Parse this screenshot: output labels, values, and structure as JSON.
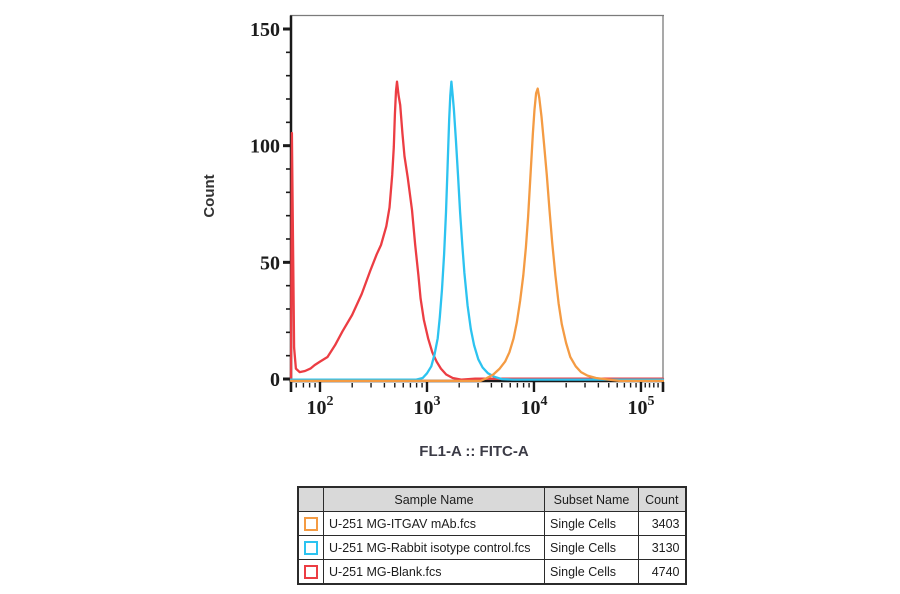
{
  "chart_data": {
    "type": "line",
    "subtype": "flow-cytometry-histogram",
    "title": "",
    "xlabel": "FL1-A :: FITC-A",
    "ylabel": "Count",
    "x_scale": "log10",
    "x_log_range": [
      1.729,
      5.206
    ],
    "x_major_ticks": [
      {
        "log": 2,
        "base": "10",
        "exp": "2"
      },
      {
        "log": 3,
        "base": "10",
        "exp": "3"
      },
      {
        "log": 4,
        "base": "10",
        "exp": "4"
      },
      {
        "log": 5,
        "base": "10",
        "exp": "5"
      }
    ],
    "x_extra_minor_tick_logs": [
      5.04,
      5.08,
      5.12,
      5.16
    ],
    "ylim": [
      0,
      150
    ],
    "y_major_ticks": [
      0,
      50,
      100,
      150
    ],
    "y_minor_step": 10,
    "grid": false,
    "legend_position": "table-below",
    "axis_color": "#1a1a1a",
    "frame_color": "#7b7b7b",
    "series": [
      {
        "name": "U-251 MG-Blank.fcs",
        "color": "#ec3d43",
        "peak": {
          "x_log10": 2.72,
          "count": 128
        },
        "points_log10x_count": [
          [
            1.729,
            0
          ],
          [
            1.737,
            106
          ],
          [
            1.748,
            60
          ],
          [
            1.758,
            14
          ],
          [
            1.775,
            5
          ],
          [
            1.81,
            3.5
          ],
          [
            1.86,
            4
          ],
          [
            1.91,
            5
          ],
          [
            1.95,
            6.5
          ],
          [
            2.0,
            8
          ],
          [
            2.07,
            10
          ],
          [
            2.14,
            15
          ],
          [
            2.21,
            21
          ],
          [
            2.3,
            28
          ],
          [
            2.39,
            37
          ],
          [
            2.47,
            47
          ],
          [
            2.53,
            54
          ],
          [
            2.57,
            58
          ],
          [
            2.62,
            66
          ],
          [
            2.65,
            74
          ],
          [
            2.675,
            88
          ],
          [
            2.69,
            100
          ],
          [
            2.7,
            114
          ],
          [
            2.71,
            124
          ],
          [
            2.72,
            128
          ],
          [
            2.735,
            122
          ],
          [
            2.75,
            118
          ],
          [
            2.77,
            106
          ],
          [
            2.79,
            96
          ],
          [
            2.82,
            87
          ],
          [
            2.86,
            73
          ],
          [
            2.89,
            58
          ],
          [
            2.92,
            45
          ],
          [
            2.94,
            35
          ],
          [
            2.97,
            26
          ],
          [
            3.01,
            18
          ],
          [
            3.05,
            12
          ],
          [
            3.09,
            8
          ],
          [
            3.13,
            5
          ],
          [
            3.18,
            2.5
          ],
          [
            3.24,
            1
          ],
          [
            3.32,
            0.3
          ],
          [
            3.45,
            0
          ],
          [
            5.206,
            0
          ]
        ]
      },
      {
        "name": "U-251 MG-Rabbit isotype control.fcs",
        "color": "#2cc3f0",
        "peak": {
          "x_log10": 3.228,
          "count": 128
        },
        "points_log10x_count": [
          [
            1.729,
            0
          ],
          [
            2.9,
            0
          ],
          [
            2.96,
            1
          ],
          [
            3.0,
            3
          ],
          [
            3.04,
            6
          ],
          [
            3.07,
            11
          ],
          [
            3.1,
            18
          ],
          [
            3.12,
            27
          ],
          [
            3.14,
            39
          ],
          [
            3.16,
            54
          ],
          [
            3.178,
            72
          ],
          [
            3.19,
            88
          ],
          [
            3.2,
            102
          ],
          [
            3.208,
            112
          ],
          [
            3.218,
            122
          ],
          [
            3.228,
            128
          ],
          [
            3.24,
            122
          ],
          [
            3.252,
            116
          ],
          [
            3.27,
            103
          ],
          [
            3.29,
            88
          ],
          [
            3.31,
            72
          ],
          [
            3.33,
            58
          ],
          [
            3.35,
            46
          ],
          [
            3.38,
            32
          ],
          [
            3.41,
            22
          ],
          [
            3.44,
            15
          ],
          [
            3.48,
            9
          ],
          [
            3.52,
            5.5
          ],
          [
            3.57,
            3
          ],
          [
            3.63,
            1.5
          ],
          [
            3.7,
            0.5
          ],
          [
            3.8,
            0
          ],
          [
            5.206,
            0
          ]
        ]
      },
      {
        "name": "U-251 MG-ITGAV mAb.fcs",
        "color": "#f49b43",
        "peak": {
          "x_log10": 4.035,
          "count": 125
        },
        "points_log10x_count": [
          [
            1.729,
            0
          ],
          [
            3.5,
            0
          ],
          [
            3.56,
            1
          ],
          [
            3.62,
            2.5
          ],
          [
            3.68,
            5
          ],
          [
            3.73,
            8
          ],
          [
            3.77,
            12
          ],
          [
            3.81,
            18
          ],
          [
            3.84,
            25
          ],
          [
            3.87,
            34
          ],
          [
            3.9,
            45
          ],
          [
            3.925,
            57
          ],
          [
            3.945,
            70
          ],
          [
            3.96,
            82
          ],
          [
            3.975,
            94
          ],
          [
            3.99,
            106
          ],
          [
            4.005,
            116
          ],
          [
            4.02,
            123
          ],
          [
            4.035,
            125
          ],
          [
            4.05,
            121
          ],
          [
            4.07,
            113
          ],
          [
            4.095,
            101
          ],
          [
            4.12,
            88
          ],
          [
            4.145,
            73
          ],
          [
            4.17,
            59
          ],
          [
            4.2,
            45
          ],
          [
            4.23,
            33
          ],
          [
            4.26,
            24
          ],
          [
            4.3,
            16
          ],
          [
            4.34,
            10
          ],
          [
            4.39,
            6
          ],
          [
            4.44,
            3.5
          ],
          [
            4.5,
            2
          ],
          [
            4.58,
            1
          ],
          [
            4.68,
            0.4
          ],
          [
            4.8,
            0
          ],
          [
            5.206,
            0
          ]
        ]
      }
    ]
  },
  "legend_table": {
    "headers": {
      "swatch": "",
      "sample": "Sample Name",
      "subset": "Subset Name",
      "count": "Count"
    },
    "rows": [
      {
        "color": "#f49b43",
        "sample": "U-251 MG-ITGAV mAb.fcs",
        "subset": "Single Cells",
        "count": "3403"
      },
      {
        "color": "#2cc3f0",
        "sample": "U-251 MG-Rabbit isotype control.fcs",
        "subset": "Single Cells",
        "count": "3130"
      },
      {
        "color": "#ec3d43",
        "sample": "U-251 MG-Blank.fcs",
        "subset": "Single Cells",
        "count": "4740"
      }
    ]
  }
}
